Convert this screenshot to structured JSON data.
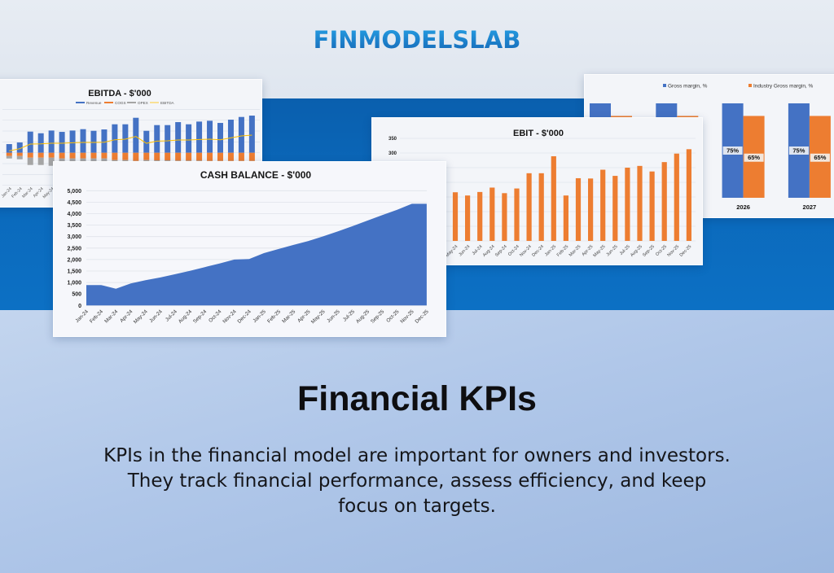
{
  "brand": {
    "logo_text": "FINMODELSLAB"
  },
  "hero": {
    "title": "Financial KPIs",
    "description_lines": [
      "KPIs in the financial model are important for owners and investors.",
      "They track financial performance, assess efficiency, and keep",
      "focus on targets."
    ]
  },
  "colors": {
    "brand_blue": "#1a7fcc",
    "band_blue": "#0b69bb",
    "chart_blue": "#4472c4",
    "chart_orange": "#ed7d31",
    "chart_gray": "#a5a5a5",
    "chart_yellow": "#ffc000"
  },
  "chart_data": [
    {
      "type": "bar",
      "subtype": "stacked bar with line",
      "title": "EBITDA - $'000",
      "legend_position": "top",
      "grid": true,
      "ylim": [
        -600,
        800
      ],
      "categories": [
        "Jan-24",
        "Feb-24",
        "Mar-24",
        "Apr-24",
        "May-24",
        "Jun-24",
        "Jul-24",
        "Aug-24",
        "Sep-24",
        "Oct-24",
        "Nov-24",
        "Dec-24",
        "Jan-25",
        "Feb-25",
        "Mar-25",
        "Apr-25",
        "May-25",
        "Jun-25",
        "Jul-25",
        "Aug-25",
        "Sep-25",
        "Oct-25",
        "Nov-25",
        "Dec-25"
      ],
      "series": [
        {
          "name": "Revenue",
          "type": "bar",
          "color": "#4472c4",
          "values": [
            160,
            190,
            390,
            360,
            410,
            385,
            410,
            435,
            405,
            430,
            525,
            525,
            645,
            405,
            510,
            510,
            565,
            525,
            575,
            590,
            550,
            610,
            660,
            685
          ]
        },
        {
          "name": "COGS",
          "type": "bar",
          "color": "#ed7d31",
          "values": [
            -60,
            -60,
            -90,
            -90,
            -90,
            -105,
            -105,
            -105,
            -105,
            -105,
            -135,
            -135,
            -150,
            -135,
            -140,
            -140,
            -145,
            -145,
            -145,
            -150,
            -150,
            -150,
            -150,
            -150
          ]
        },
        {
          "name": "OPEX",
          "type": "bar",
          "color": "#a5a5a5",
          "values": [
            -45,
            -60,
            -135,
            -135,
            -150,
            -60,
            -60,
            -60,
            -60,
            -60,
            -60,
            -60,
            -60,
            -60,
            -60,
            -60,
            -60,
            -60,
            -60,
            -60,
            -60,
            -60,
            -60,
            -60
          ]
        },
        {
          "name": "EBITDA",
          "type": "line",
          "color": "#ffc000",
          "values": [
            35,
            75,
            160,
            165,
            175,
            175,
            185,
            190,
            190,
            195,
            240,
            250,
            300,
            175,
            215,
            220,
            235,
            235,
            245,
            250,
            240,
            275,
            310,
            325
          ]
        }
      ]
    },
    {
      "type": "area",
      "title": "CASH BALANCE - $'000",
      "grid": true,
      "color": "#4472c4",
      "ylim": [
        0,
        5000
      ],
      "yticks": [
        "0",
        "500",
        "1,000",
        "1,500",
        "2,000",
        "2,500",
        "3,000",
        "3,500",
        "4,000",
        "4,500",
        "5,000"
      ],
      "categories": [
        "Jan-24",
        "Feb-24",
        "Mar-24",
        "Apr-24",
        "May-24",
        "Jun-24",
        "Jul-24",
        "Aug-24",
        "Sep-24",
        "Oct-24",
        "Nov-24",
        "Dec-24",
        "Jan-25",
        "Feb-25",
        "Mar-25",
        "Apr-25",
        "May-25",
        "Jun-25",
        "Jul-25",
        "Aug-25",
        "Sep-25",
        "Oct-25",
        "Nov-25",
        "Dec-25"
      ],
      "values": [
        890,
        890,
        730,
        960,
        1100,
        1220,
        1360,
        1510,
        1670,
        1830,
        2000,
        2020,
        2280,
        2460,
        2640,
        2810,
        3010,
        3230,
        3460,
        3700,
        3940,
        4170,
        4430,
        4430
      ]
    },
    {
      "type": "bar",
      "title": "EBIT - $'000",
      "grid": true,
      "color": "#ed7d31",
      "ylim": [
        0,
        350
      ],
      "yticks": [
        "300",
        "350"
      ],
      "categories": [
        "May-24",
        "Jun-24",
        "Jul-24",
        "Aug-24",
        "Sep-24",
        "Oct-24",
        "Nov-24",
        "Dec-24",
        "Jan-25",
        "Feb-25",
        "Mar-25",
        "Apr-25",
        "May-25",
        "Jun-25",
        "Jul-25",
        "Aug-25",
        "Sep-25",
        "Oct-25",
        "Nov-25",
        "Dec-25"
      ],
      "values": [
        166,
        155,
        167,
        182,
        163,
        179,
        231,
        231,
        289,
        155,
        214,
        213,
        243,
        222,
        250,
        256,
        237,
        269,
        298,
        313
      ]
    },
    {
      "type": "bar",
      "subtype": "clustered",
      "title": "",
      "legend_position": "top",
      "categories": [
        null,
        null,
        "2026",
        "2027"
      ],
      "series": [
        {
          "name": "Gross margin, %",
          "color": "#4472c4",
          "values": [
            75,
            75,
            75,
            75
          ]
        },
        {
          "name": "Industry Gross margin, %",
          "color": "#ed7d31",
          "values": [
            65,
            65,
            65,
            65
          ]
        }
      ],
      "data_labels": {
        "Gross margin, %": "75%",
        "Industry Gross margin, %": "65%"
      }
    }
  ]
}
